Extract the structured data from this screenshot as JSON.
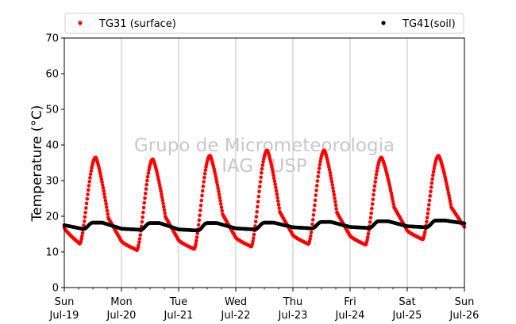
{
  "chart_data": {
    "type": "scatter",
    "ylabel": "Temperature (°C)",
    "ylim": [
      0,
      70
    ],
    "yticks": [
      0,
      10,
      20,
      30,
      40,
      50,
      60,
      70
    ],
    "xlim_days": [
      0,
      7
    ],
    "xtick_labels": [
      {
        "day": "Sun",
        "date": "Jul-19"
      },
      {
        "day": "Mon",
        "date": "Jul-20"
      },
      {
        "day": "Tue",
        "date": "Jul-21"
      },
      {
        "day": "Wed",
        "date": "Jul-22"
      },
      {
        "day": "Thu",
        "date": "Jul-23"
      },
      {
        "day": "Fri",
        "date": "Jul-24"
      },
      {
        "day": "Sat",
        "date": "Jul-25"
      },
      {
        "day": "Sun",
        "date": "Jul-26"
      }
    ],
    "grid": "vertical",
    "legend_placement": "top",
    "watermark": [
      "Grupo de Micrometeorologia",
      "IAG / USP"
    ],
    "series": [
      {
        "name": "TG31 (surface)",
        "color": "#ff0000",
        "daily_min": [
          12.3,
          10.5,
          10.8,
          11.5,
          12.2,
          12.0,
          13.5
        ],
        "daily_max": [
          36.5,
          36.0,
          37.0,
          38.5,
          38.5,
          36.5,
          37.0
        ],
        "last_value": 17.0
      },
      {
        "name": "TG41(soil)",
        "color": "#000000",
        "daily_min": [
          16.4,
          16.2,
          16.0,
          16.3,
          16.6,
          16.7,
          16.9
        ],
        "daily_max": [
          18.2,
          18.1,
          18.1,
          18.2,
          18.4,
          18.6,
          18.8
        ],
        "first_value": 17.5,
        "last_value": 18.0
      }
    ]
  }
}
